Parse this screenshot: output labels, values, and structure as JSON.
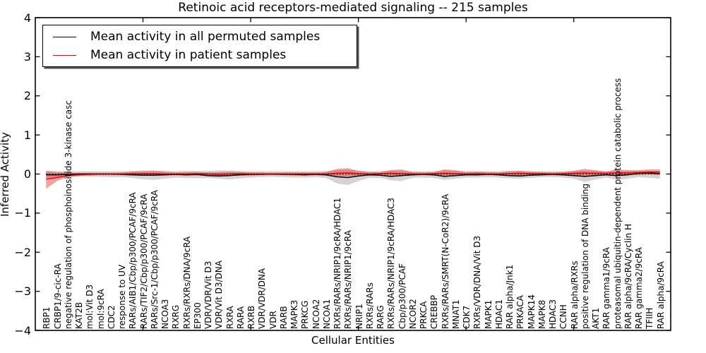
{
  "chart_data": {
    "type": "line",
    "title": "Retinoic acid receptors-mediated signaling -- 215 samples",
    "xlabel": "Cellular Entities",
    "ylabel": "Inferred Activity",
    "ylim": [
      -4,
      4
    ],
    "grid": false,
    "legend_position": "upper left",
    "ytick_values": [
      4,
      3,
      2,
      1,
      0,
      -1,
      -2,
      -3,
      -4
    ],
    "ytick_labels": [
      "4",
      "3",
      "2",
      "1",
      "0",
      "−1",
      "−2",
      "−3",
      "−4"
    ],
    "x_major_tick_indices": [
      9,
      19,
      29,
      39,
      49
    ],
    "categories": [
      "RBP1",
      "CRBP1/9-cic-RA",
      "negative regulation of phosphoinositide 3-kinase casc",
      "KAT2B",
      "mol:Vit D3",
      "mol:9cRA",
      "CDC2",
      "response to UV",
      "RARs/AIB1/Cbp/p300/PCAF/9cRA",
      "RARs/TIF2/Cbp/p300/PCAF/9cRA",
      "RARs/Src-1/Cbp/p300/PCAF/9cRA",
      "NCOA3",
      "RXRG",
      "RXRs/RXRs/DNA/9cRA",
      "EP300",
      "VDR/VDR/Vit D3",
      "VDR/Vit D3/DNA",
      "RXRA",
      "RARA",
      "RXRB",
      "VDR/VDR/DNA",
      "VDR",
      "RARB",
      "MAPK3",
      "PRKCG",
      "NCOA2",
      "NCOA1",
      "RXRs/RARs/NRIP1/9cRA/HDAC1",
      "RXRs/RARs/NRIP1/9cRA",
      "NRIP1",
      "RXRs/RARs",
      "RARG",
      "RXRs/RARs/NRIP1/9cRA/HDAC3",
      "Cbp/p300/PCAF",
      "NCOR2",
      "PRKCA",
      "CREBBP",
      "RXRs/RARs/SMRT(N-CoR2)/9cRA",
      "MNAT1",
      "CDK7",
      "RXRs/VDR/DNA/Vit D3",
      "MAPK1",
      "HDAC1",
      "RAR alpha/Jnk1",
      "PRKACA",
      "MAPK14",
      "MAPK8",
      "HDAC3",
      "CCNH",
      "RAR alpha/RXRs",
      "positive regulation of DNA binding",
      "AKT1",
      "RAR gamma1/9cRA",
      "proteasomal ubiquitin-dependent protein catabolic process",
      "RAR alpha/9cRA/Cyclin H",
      "RAR gamma2/9cRA",
      "TFIIH",
      "RAR alpha/9cRA"
    ],
    "series": [
      {
        "name": "Mean activity in all permuted samples",
        "color": "#000000",
        "values": [
          -0.02,
          -0.02,
          -0.01,
          0,
          0,
          0,
          0,
          -0.01,
          -0.02,
          -0.03,
          -0.03,
          -0.02,
          -0.01,
          -0.02,
          -0.01,
          -0.04,
          -0.05,
          -0.04,
          -0.02,
          -0.01,
          -0.01,
          0,
          -0.01,
          -0.01,
          -0.02,
          -0.01,
          -0.02,
          -0.07,
          -0.09,
          -0.05,
          -0.02,
          -0.03,
          -0.06,
          -0.04,
          -0.02,
          -0.01,
          -0.02,
          -0.06,
          -0.04,
          -0.02,
          -0.02,
          -0.01,
          -0.02,
          -0.04,
          -0.05,
          -0.03,
          -0.02,
          -0.01,
          -0.02,
          -0.04,
          -0.06,
          -0.04,
          -0.02,
          -0.04,
          -0.02,
          0.02,
          0.03,
          0.01
        ]
      },
      {
        "name": "Mean activity in patient samples",
        "color": "#ff0000",
        "values": [
          -0.13,
          -0.09,
          -0.04,
          -0.02,
          -0.01,
          0,
          0,
          0,
          0.01,
          0.01,
          0.01,
          0,
          0,
          0,
          0.01,
          0,
          -0.01,
          0,
          0.01,
          0,
          0,
          0,
          0,
          0,
          0,
          0,
          0,
          0.02,
          0.03,
          0.01,
          0,
          0.01,
          0.02,
          0.01,
          0,
          0,
          0.01,
          0.02,
          0.01,
          0,
          0.01,
          0,
          0,
          0.01,
          0.02,
          0.01,
          0.01,
          0,
          0.01,
          0.02,
          0.03,
          0.02,
          0.02,
          0.03,
          0.03,
          0.04,
          0.05,
          0.05
        ]
      }
    ],
    "bands": [
      {
        "name": "permuted-activity-range",
        "color": "rgba(130,130,130,0.35)",
        "upper": [
          0.08,
          0.07,
          0.07,
          0.07,
          0.07,
          0.07,
          0.07,
          0.07,
          0.08,
          0.09,
          0.09,
          0.08,
          0.07,
          0.08,
          0.08,
          0.08,
          0.09,
          0.09,
          0.08,
          0.07,
          0.07,
          0.07,
          0.07,
          0.07,
          0.07,
          0.07,
          0.08,
          0.1,
          0.11,
          0.09,
          0.07,
          0.07,
          0.09,
          0.08,
          0.07,
          0.07,
          0.07,
          0.09,
          0.08,
          0.07,
          0.07,
          0.07,
          0.07,
          0.08,
          0.08,
          0.07,
          0.07,
          0.07,
          0.07,
          0.08,
          0.09,
          0.08,
          0.07,
          0.08,
          0.08,
          0.07,
          0.08,
          0.08
        ],
        "lower": [
          -0.1,
          -0.08,
          -0.07,
          -0.07,
          -0.07,
          -0.07,
          -0.08,
          -0.08,
          -0.1,
          -0.13,
          -0.15,
          -0.12,
          -0.09,
          -0.1,
          -0.11,
          -0.1,
          -0.12,
          -0.14,
          -0.11,
          -0.09,
          -0.08,
          -0.07,
          -0.08,
          -0.09,
          -0.09,
          -0.08,
          -0.1,
          -0.24,
          -0.28,
          -0.18,
          -0.1,
          -0.1,
          -0.16,
          -0.18,
          -0.1,
          -0.09,
          -0.1,
          -0.15,
          -0.12,
          -0.09,
          -0.09,
          -0.08,
          -0.09,
          -0.11,
          -0.12,
          -0.1,
          -0.08,
          -0.08,
          -0.09,
          -0.12,
          -0.2,
          -0.14,
          -0.09,
          -0.15,
          -0.12,
          -0.08,
          -0.1,
          -0.12
        ]
      },
      {
        "name": "patient-activity-range",
        "color": "rgba(230,30,30,0.42)",
        "upper": [
          0.08,
          0.05,
          0.04,
          0.03,
          0.03,
          0.03,
          0.03,
          0.04,
          0.06,
          0.07,
          0.08,
          0.06,
          0.04,
          0.05,
          0.05,
          0.04,
          0.05,
          0.06,
          0.05,
          0.04,
          0.04,
          0.03,
          0.04,
          0.04,
          0.04,
          0.04,
          0.05,
          0.13,
          0.15,
          0.08,
          0.05,
          0.05,
          0.1,
          0.12,
          0.05,
          0.04,
          0.05,
          0.12,
          0.1,
          0.05,
          0.06,
          0.05,
          0.04,
          0.07,
          0.08,
          0.06,
          0.05,
          0.04,
          0.05,
          0.08,
          0.13,
          0.1,
          0.06,
          0.12,
          0.1,
          0.1,
          0.12,
          0.12
        ],
        "lower": [
          -0.38,
          -0.18,
          -0.08,
          -0.05,
          -0.04,
          -0.03,
          -0.03,
          -0.03,
          -0.04,
          -0.04,
          -0.04,
          -0.04,
          -0.03,
          -0.04,
          -0.04,
          -0.04,
          -0.05,
          -0.05,
          -0.04,
          -0.04,
          -0.03,
          -0.03,
          -0.03,
          -0.04,
          -0.04,
          -0.03,
          -0.04,
          -0.06,
          -0.06,
          -0.05,
          -0.04,
          -0.04,
          -0.05,
          -0.05,
          -0.04,
          -0.03,
          -0.04,
          -0.05,
          -0.04,
          -0.03,
          -0.04,
          -0.03,
          -0.03,
          -0.04,
          -0.05,
          -0.04,
          -0.03,
          -0.03,
          -0.04,
          -0.05,
          -0.06,
          -0.05,
          -0.03,
          -0.04,
          -0.03,
          -0.02,
          -0.01,
          -0.02
        ]
      }
    ],
    "zero_line": {
      "y": 0,
      "style": "dotted",
      "color": "#000000"
    }
  }
}
